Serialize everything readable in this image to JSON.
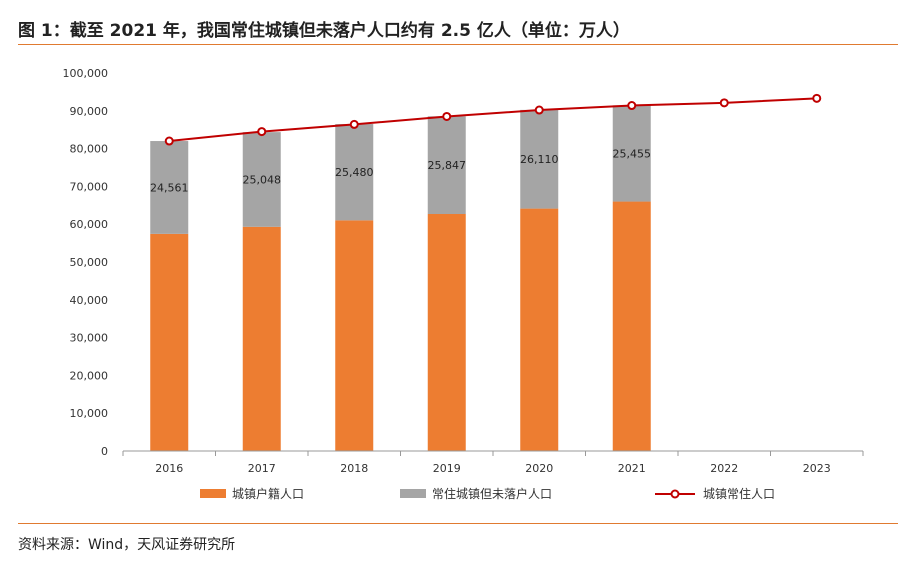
{
  "title": "图 1：截至 2021 年，我国常住城镇但未落户人口约有 2.5 亿人（单位：万人）",
  "source": "资料来源：Wind，天风证券研究所",
  "colors": {
    "hukou": "#ED7D31",
    "gap": "#A5A5A5",
    "resident": "#C00000",
    "rule": "#E07A30"
  },
  "chart_data": {
    "type": "bar",
    "categories": [
      "2016",
      "2017",
      "2018",
      "2019",
      "2020",
      "2021",
      "2022",
      "2023"
    ],
    "ylim": [
      0,
      100000
    ],
    "yticks": [
      "0",
      "10,000",
      "20,000",
      "30,000",
      "40,000",
      "50,000",
      "60,000",
      "70,000",
      "80,000",
      "90,000",
      "100,000"
    ],
    "ytick_values": [
      0,
      10000,
      20000,
      30000,
      40000,
      50000,
      60000,
      70000,
      80000,
      90000,
      100000
    ],
    "series": [
      {
        "name": "城镇户籍人口",
        "type": "bar",
        "values": [
          57440,
          59310,
          61020,
          62700,
          64130,
          65990,
          null,
          null
        ]
      },
      {
        "name": "常住城镇但未落户人口",
        "type": "bar",
        "values": [
          24561,
          25048,
          25480,
          25847,
          26110,
          25455,
          null,
          null
        ],
        "labels": [
          "24,561",
          "25,048",
          "25,480",
          "25,847",
          "26,110",
          "25,455",
          null,
          null
        ]
      },
      {
        "name": "城镇常住人口",
        "type": "line",
        "values": [
          82000,
          84500,
          86400,
          88500,
          90200,
          91400,
          92100,
          93300
        ]
      }
    ],
    "legend_position": "bottom",
    "grid": false
  }
}
